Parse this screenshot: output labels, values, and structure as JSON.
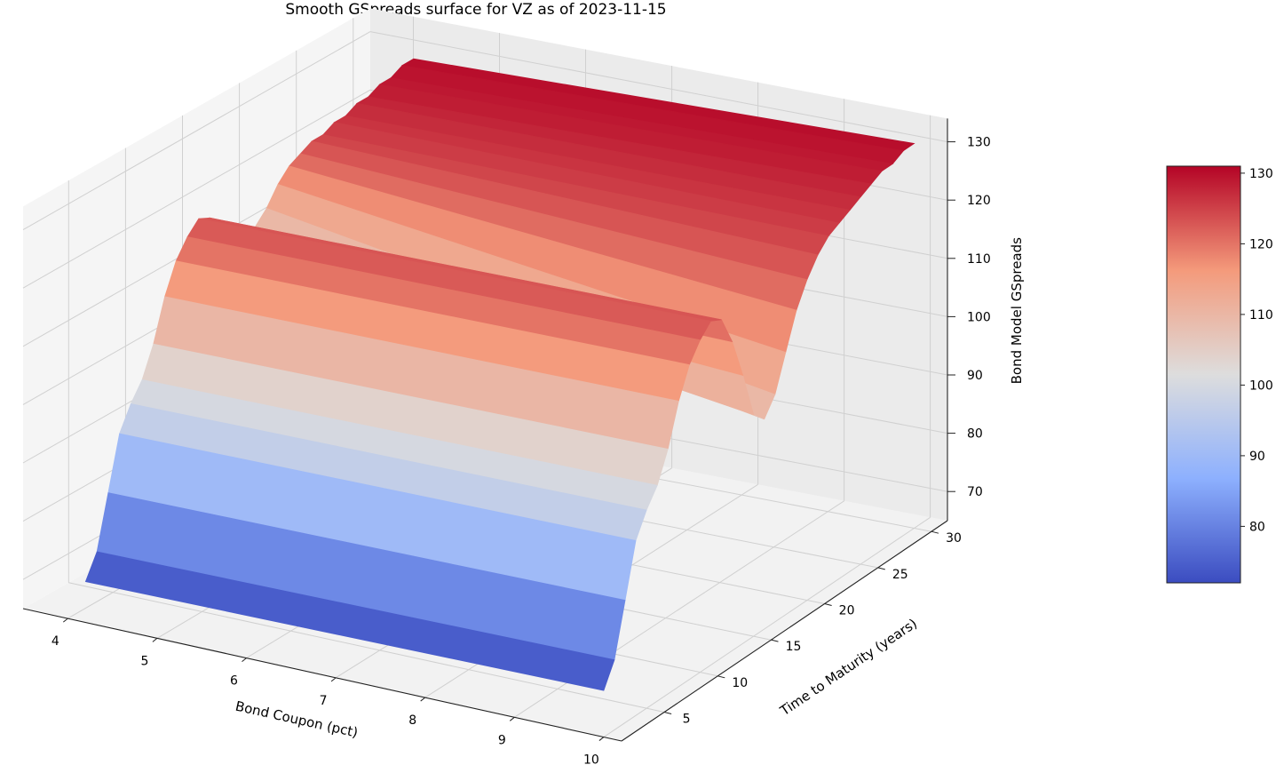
{
  "chart_data": {
    "type": "surface",
    "title": "Smooth GSpreads surface for VZ as of 2023-11-15",
    "xlabel": "Bond Coupon (pct)",
    "ylabel": "Time to Maturity (years)",
    "zlabel": "Bond Model GSpreads",
    "colormap": "coolwarm",
    "x_ticks": [
      "4",
      "5",
      "6",
      "7",
      "8",
      "9",
      "10"
    ],
    "y_ticks": [
      "5",
      "10",
      "15",
      "20",
      "25",
      "30"
    ],
    "z_ticks": [
      "70",
      "80",
      "90",
      "100",
      "110",
      "120",
      "130"
    ],
    "colorbar_ticks": [
      "80",
      "90",
      "100",
      "110",
      "120",
      "130"
    ],
    "xlim": [
      3.5,
      10.2
    ],
    "ylim": [
      1,
      31.5
    ],
    "zlim": [
      65,
      134
    ],
    "colorbar_range": [
      72,
      131
    ],
    "grid": true,
    "x": [
      4.2,
      10.0
    ],
    "maturity_years": [
      1,
      2,
      3,
      4,
      5,
      6,
      7,
      8,
      9,
      10,
      11,
      12,
      13,
      14,
      15,
      16,
      17,
      18,
      19,
      20,
      21,
      22,
      23,
      24,
      25,
      26,
      27,
      28,
      29,
      30
    ],
    "spreads_at_coupon_4_2": [
      72,
      76,
      85,
      94,
      98,
      101,
      106,
      113,
      118,
      121,
      123,
      122,
      119,
      116,
      115,
      116,
      118,
      121,
      123,
      124,
      125,
      125,
      126,
      126,
      127,
      127,
      128,
      128,
      129,
      129
    ],
    "spreads_at_coupon_10_0": [
      73,
      77,
      86,
      95,
      99,
      102,
      107,
      114,
      119,
      122,
      124,
      123,
      118,
      111,
      103,
      101,
      104,
      110,
      116,
      120,
      123,
      125,
      126,
      127,
      128,
      129,
      130,
      130,
      131,
      131
    ]
  }
}
